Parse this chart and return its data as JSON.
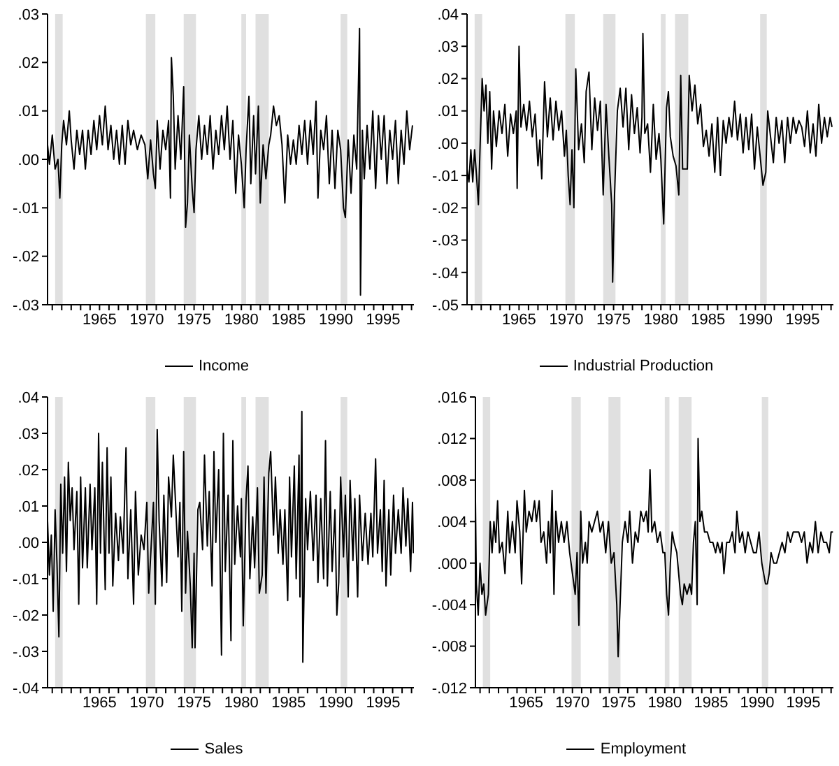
{
  "chart_data": [
    {
      "type": "line",
      "xlim": [
        1959.5,
        1998.25
      ],
      "ylim": [
        -0.03,
        0.03
      ],
      "yticks": [
        {
          "value": -0.03,
          "label": "-.03"
        },
        {
          "value": -0.02,
          "label": "-.02"
        },
        {
          "value": -0.01,
          "label": "-.01"
        },
        {
          "value": 0,
          "label": ".00"
        },
        {
          "value": 0.01,
          "label": ".01"
        },
        {
          "value": 0.02,
          "label": ".02"
        },
        {
          "value": 0.03,
          "label": ".03"
        }
      ],
      "xticks": [
        {
          "value": 1960,
          "label": null
        },
        {
          "value": 1961,
          "label": null
        },
        {
          "value": 1962,
          "label": null
        },
        {
          "value": 1963,
          "label": null
        },
        {
          "value": 1964,
          "label": null
        },
        1965,
        {
          "value": 1966,
          "label": null
        },
        {
          "value": 1967,
          "label": null
        },
        {
          "value": 1968,
          "label": null
        },
        {
          "value": 1969,
          "label": null
        },
        1970,
        {
          "value": 1971,
          "label": null
        },
        {
          "value": 1972,
          "label": null
        },
        {
          "value": 1973,
          "label": null
        },
        {
          "value": 1974,
          "label": null
        },
        1975,
        {
          "value": 1976,
          "label": null
        },
        {
          "value": 1977,
          "label": null
        },
        {
          "value": 1978,
          "label": null
        },
        {
          "value": 1979,
          "label": null
        },
        1980,
        {
          "value": 1981,
          "label": null
        },
        {
          "value": 1982,
          "label": null
        },
        {
          "value": 1983,
          "label": null
        },
        {
          "value": 1984,
          "label": null
        },
        1985,
        {
          "value": 1986,
          "label": null
        },
        {
          "value": 1987,
          "label": null
        },
        {
          "value": 1988,
          "label": null
        },
        {
          "value": 1989,
          "label": null
        },
        1990,
        {
          "value": 1991,
          "label": null
        },
        {
          "value": 1992,
          "label": null
        },
        {
          "value": 1993,
          "label": null
        },
        {
          "value": 1994,
          "label": null
        },
        1995,
        {
          "value": 1996,
          "label": null
        },
        {
          "value": 1997,
          "label": null
        },
        {
          "value": 1998,
          "label": null
        }
      ],
      "bands": [
        {
          "axis": "x",
          "from": 1960.3,
          "to": 1961.1,
          "color": "#e0e0e0"
        },
        {
          "axis": "x",
          "from": 1969.9,
          "to": 1970.9,
          "color": "#e0e0e0"
        },
        {
          "axis": "x",
          "from": 1973.9,
          "to": 1975.2,
          "color": "#e0e0e0"
        },
        {
          "axis": "x",
          "from": 1980,
          "to": 1980.5,
          "color": "#e0e0e0"
        },
        {
          "axis": "x",
          "from": 1981.5,
          "to": 1982.9,
          "color": "#e0e0e0"
        },
        {
          "axis": "x",
          "from": 1990.5,
          "to": 1991.2,
          "color": "#e0e0e0"
        }
      ],
      "legend": "bottom",
      "series": [
        {
          "name": "Income",
          "color": "#000000",
          "x": [
            1959.5,
            1959.7,
            1960.0,
            1960.3,
            1960.6,
            1960.8,
            1961.0,
            1961.2,
            1961.5,
            1961.8,
            1962.0,
            1962.3,
            1962.6,
            1962.9,
            1963.2,
            1963.5,
            1963.8,
            1964.1,
            1964.4,
            1964.7,
            1965.0,
            1965.3,
            1965.6,
            1965.9,
            1966.2,
            1966.5,
            1966.8,
            1967.1,
            1967.4,
            1967.7,
            1968.0,
            1968.3,
            1968.6,
            1969.0,
            1969.4,
            1969.8,
            1970.1,
            1970.4,
            1970.7,
            1970.9,
            1971.1,
            1971.4,
            1971.7,
            1972.0,
            1972.3,
            1972.5,
            1972.6,
            1972.8,
            1973.0,
            1973.3,
            1973.6,
            1973.9,
            1974.1,
            1974.3,
            1974.5,
            1974.8,
            1975.0,
            1975.2,
            1975.5,
            1975.8,
            1976.1,
            1976.4,
            1976.7,
            1977.0,
            1977.3,
            1977.6,
            1977.9,
            1978.2,
            1978.5,
            1978.8,
            1979.1,
            1979.4,
            1979.7,
            1980.0,
            1980.3,
            1980.5,
            1980.8,
            1981.0,
            1981.3,
            1981.5,
            1981.8,
            1982.0,
            1982.3,
            1982.6,
            1982.9,
            1983.1,
            1983.4,
            1983.7,
            1984.0,
            1984.3,
            1984.6,
            1984.9,
            1985.2,
            1985.5,
            1985.8,
            1986.1,
            1986.4,
            1986.7,
            1987.0,
            1987.3,
            1987.6,
            1987.9,
            1988.1,
            1988.4,
            1988.7,
            1989.0,
            1989.3,
            1989.6,
            1989.9,
            1990.2,
            1990.5,
            1990.8,
            1991.0,
            1991.3,
            1991.6,
            1991.9,
            1992.2,
            1992.5,
            1992.6,
            1992.8,
            1993.0,
            1993.3,
            1993.6,
            1993.9,
            1994.2,
            1994.5,
            1994.8,
            1995.1,
            1995.4,
            1995.7,
            1996.0,
            1996.3,
            1996.6,
            1996.9,
            1997.2,
            1997.5,
            1997.8,
            1998.1
          ],
          "values": [
            0.003,
            -0.001,
            0.005,
            -0.002,
            0.0,
            -0.008,
            0.003,
            0.008,
            0.003,
            0.01,
            0.004,
            -0.002,
            0.006,
            0.001,
            0.006,
            -0.002,
            0.006,
            0.001,
            0.008,
            0.002,
            0.009,
            0.003,
            0.011,
            0.002,
            0.007,
            0.0,
            0.006,
            -0.001,
            0.007,
            -0.001,
            0.008,
            0.003,
            0.006,
            0.002,
            0.005,
            0.003,
            -0.004,
            0.004,
            -0.003,
            -0.006,
            0.008,
            -0.002,
            0.006,
            0.002,
            0.008,
            -0.008,
            0.021,
            0.013,
            -0.002,
            0.009,
            0.0,
            0.015,
            -0.014,
            -0.009,
            0.005,
            -0.006,
            -0.011,
            0.002,
            0.009,
            0.0,
            0.007,
            0.001,
            0.009,
            -0.002,
            0.006,
            0.001,
            0.009,
            0.002,
            0.011,
            0.0,
            0.008,
            -0.007,
            0.005,
            -0.001,
            -0.01,
            0.002,
            0.013,
            -0.005,
            0.009,
            -0.003,
            0.011,
            -0.009,
            0.003,
            -0.004,
            0.003,
            0.005,
            0.011,
            0.007,
            0.009,
            0.003,
            -0.009,
            0.005,
            -0.001,
            0.004,
            -0.001,
            0.007,
            0.001,
            0.008,
            -0.001,
            0.008,
            0.001,
            0.012,
            -0.008,
            0.006,
            0.002,
            0.009,
            -0.005,
            0.006,
            -0.006,
            0.006,
            0.002,
            -0.01,
            -0.012,
            0.004,
            -0.007,
            0.005,
            -0.002,
            0.027,
            -0.028,
            0.006,
            -0.004,
            0.007,
            -0.002,
            0.01,
            -0.006,
            0.009,
            0.0,
            0.009,
            -0.005,
            0.006,
            0.0,
            0.008,
            -0.005,
            0.006,
            -0.001,
            0.01,
            0.002,
            0.007
          ]
        }
      ]
    },
    {
      "type": "line",
      "xlim": [
        1959.5,
        1998.25
      ],
      "ylim": [
        -0.05,
        0.04
      ],
      "yticks": [
        {
          "value": -0.05,
          "label": "-.05"
        },
        {
          "value": -0.04,
          "label": "-.04"
        },
        {
          "value": -0.03,
          "label": "-.03"
        },
        {
          "value": -0.02,
          "label": "-.02"
        },
        {
          "value": -0.01,
          "label": "-.01"
        },
        {
          "value": 0,
          "label": ".00"
        },
        {
          "value": 0.01,
          "label": ".01"
        },
        {
          "value": 0.02,
          "label": ".02"
        },
        {
          "value": 0.03,
          "label": ".03"
        },
        {
          "value": 0.04,
          "label": ".04"
        }
      ],
      "xticks": [
        {
          "value": 1960,
          "label": null
        },
        {
          "value": 1961,
          "label": null
        },
        {
          "value": 1962,
          "label": null
        },
        {
          "value": 1963,
          "label": null
        },
        {
          "value": 1964,
          "label": null
        },
        1965,
        {
          "value": 1966,
          "label": null
        },
        {
          "value": 1967,
          "label": null
        },
        {
          "value": 1968,
          "label": null
        },
        {
          "value": 1969,
          "label": null
        },
        1970,
        {
          "value": 1971,
          "label": null
        },
        {
          "value": 1972,
          "label": null
        },
        {
          "value": 1973,
          "label": null
        },
        {
          "value": 1974,
          "label": null
        },
        1975,
        {
          "value": 1976,
          "label": null
        },
        {
          "value": 1977,
          "label": null
        },
        {
          "value": 1978,
          "label": null
        },
        {
          "value": 1979,
          "label": null
        },
        1980,
        {
          "value": 1981,
          "label": null
        },
        {
          "value": 1982,
          "label": null
        },
        {
          "value": 1983,
          "label": null
        },
        {
          "value": 1984,
          "label": null
        },
        1985,
        {
          "value": 1986,
          "label": null
        },
        {
          "value": 1987,
          "label": null
        },
        {
          "value": 1988,
          "label": null
        },
        {
          "value": 1989,
          "label": null
        },
        1990,
        {
          "value": 1991,
          "label": null
        },
        {
          "value": 1992,
          "label": null
        },
        {
          "value": 1993,
          "label": null
        },
        {
          "value": 1994,
          "label": null
        },
        1995,
        {
          "value": 1996,
          "label": null
        },
        {
          "value": 1997,
          "label": null
        },
        {
          "value": 1998,
          "label": null
        }
      ],
      "bands": [
        {
          "axis": "x",
          "from": 1960.3,
          "to": 1961.1,
          "color": "#e0e0e0"
        },
        {
          "axis": "x",
          "from": 1969.9,
          "to": 1970.9,
          "color": "#e0e0e0"
        },
        {
          "axis": "x",
          "from": 1973.9,
          "to": 1975.2,
          "color": "#e0e0e0"
        },
        {
          "axis": "x",
          "from": 1980,
          "to": 1980.5,
          "color": "#e0e0e0"
        },
        {
          "axis": "x",
          "from": 1981.5,
          "to": 1982.9,
          "color": "#e0e0e0"
        },
        {
          "axis": "x",
          "from": 1990.5,
          "to": 1991.2,
          "color": "#e0e0e0"
        }
      ],
      "legend": "bottom",
      "series": [
        {
          "name": "Industrial Production",
          "color": "#000000",
          "x": [
            1959.5,
            1959.7,
            1959.9,
            1960.1,
            1960.3,
            1960.5,
            1960.7,
            1960.9,
            1961.1,
            1961.3,
            1961.5,
            1961.7,
            1961.9,
            1962.1,
            1962.3,
            1962.6,
            1962.9,
            1963.2,
            1963.5,
            1963.8,
            1964.1,
            1964.4,
            1964.7,
            1964.8,
            1965.0,
            1965.2,
            1965.5,
            1965.8,
            1966.1,
            1966.4,
            1966.7,
            1967.0,
            1967.2,
            1967.4,
            1967.7,
            1968.0,
            1968.3,
            1968.6,
            1968.9,
            1969.2,
            1969.5,
            1969.8,
            1970.0,
            1970.2,
            1970.4,
            1970.6,
            1970.8,
            1971.0,
            1971.3,
            1971.6,
            1971.9,
            1972.1,
            1972.4,
            1972.7,
            1973.0,
            1973.3,
            1973.6,
            1973.9,
            1974.2,
            1974.5,
            1974.8,
            1974.9,
            1975.1,
            1975.4,
            1975.7,
            1976.0,
            1976.3,
            1976.6,
            1976.9,
            1977.2,
            1977.5,
            1977.8,
            1978.0,
            1978.1,
            1978.3,
            1978.6,
            1978.9,
            1979.2,
            1979.5,
            1979.8,
            1980.0,
            1980.3,
            1980.6,
            1980.8,
            1981.0,
            1981.3,
            1981.6,
            1981.9,
            1982.1,
            1982.3,
            1982.6,
            1982.8,
            1983.0,
            1983.3,
            1983.6,
            1983.9,
            1984.2,
            1984.5,
            1984.8,
            1985.1,
            1985.4,
            1985.7,
            1986.0,
            1986.3,
            1986.6,
            1986.9,
            1987.2,
            1987.5,
            1987.8,
            1988.1,
            1988.4,
            1988.7,
            1989.0,
            1989.3,
            1989.6,
            1989.9,
            1990.2,
            1990.5,
            1990.8,
            1991.1,
            1991.3,
            1991.6,
            1991.9,
            1992.2,
            1992.5,
            1992.8,
            1993.1,
            1993.4,
            1993.7,
            1994.0,
            1994.3,
            1994.6,
            1994.9,
            1995.2,
            1995.5,
            1995.8,
            1996.1,
            1996.4,
            1996.7,
            1997.0,
            1997.3,
            1997.6,
            1997.9,
            1998.1
          ],
          "values": [
            -0.008,
            -0.012,
            -0.002,
            -0.012,
            -0.002,
            -0.01,
            -0.019,
            0.001,
            0.02,
            0.01,
            0.018,
            0.0,
            0.016,
            -0.008,
            0.01,
            -0.001,
            0.01,
            0.003,
            0.012,
            -0.004,
            0.009,
            0.003,
            0.01,
            -0.014,
            0.03,
            0.005,
            0.012,
            0.004,
            0.013,
            0.002,
            0.009,
            -0.007,
            0.001,
            -0.011,
            0.019,
            0.002,
            0.014,
            0.001,
            0.013,
            0.004,
            0.01,
            -0.004,
            0.004,
            -0.01,
            -0.019,
            -0.002,
            -0.02,
            0.023,
            -0.002,
            0.006,
            -0.006,
            0.016,
            0.022,
            -0.002,
            0.014,
            0.004,
            0.013,
            -0.016,
            0.012,
            -0.004,
            -0.019,
            -0.043,
            -0.016,
            0.01,
            0.017,
            0.005,
            0.017,
            -0.002,
            0.015,
            0.003,
            0.011,
            -0.003,
            0.008,
            0.034,
            0.003,
            0.006,
            -0.009,
            0.012,
            -0.005,
            0.003,
            -0.005,
            -0.025,
            0.011,
            0.016,
            0.002,
            -0.004,
            -0.007,
            -0.016,
            0.021,
            -0.008,
            -0.008,
            -0.008,
            0.021,
            0.01,
            0.018,
            0.006,
            0.012,
            -0.001,
            0.004,
            -0.004,
            0.006,
            -0.009,
            0.008,
            -0.01,
            0.007,
            0.0,
            0.008,
            0.002,
            0.013,
            0.001,
            0.009,
            -0.003,
            0.008,
            -0.002,
            0.009,
            -0.008,
            0.005,
            -0.004,
            -0.013,
            -0.009,
            0.01,
            0.002,
            -0.006,
            0.008,
            0.0,
            0.007,
            -0.006,
            0.008,
            0.0,
            0.008,
            0.003,
            0.007,
            0.005,
            -0.001,
            0.01,
            -0.003,
            0.006,
            -0.004,
            0.012,
            0.0,
            0.008,
            0.002,
            0.008,
            0.005
          ]
        }
      ]
    },
    {
      "type": "line",
      "xlim": [
        1959.5,
        1998.25
      ],
      "ylim": [
        -0.04,
        0.04
      ],
      "yticks": [
        {
          "value": -0.04,
          "label": "-.04"
        },
        {
          "value": -0.03,
          "label": "-.03"
        },
        {
          "value": -0.02,
          "label": "-.02"
        },
        {
          "value": -0.01,
          "label": "-.01"
        },
        {
          "value": 0,
          "label": ".00"
        },
        {
          "value": 0.01,
          "label": ".01"
        },
        {
          "value": 0.02,
          "label": ".02"
        },
        {
          "value": 0.03,
          "label": ".03"
        },
        {
          "value": 0.04,
          "label": ".04"
        }
      ],
      "xticks": [
        {
          "value": 1960,
          "label": null
        },
        {
          "value": 1961,
          "label": null
        },
        {
          "value": 1962,
          "label": null
        },
        {
          "value": 1963,
          "label": null
        },
        {
          "value": 1964,
          "label": null
        },
        1965,
        {
          "value": 1966,
          "label": null
        },
        {
          "value": 1967,
          "label": null
        },
        {
          "value": 1968,
          "label": null
        },
        {
          "value": 1969,
          "label": null
        },
        1970,
        {
          "value": 1971,
          "label": null
        },
        {
          "value": 1972,
          "label": null
        },
        {
          "value": 1973,
          "label": null
        },
        {
          "value": 1974,
          "label": null
        },
        1975,
        {
          "value": 1976,
          "label": null
        },
        {
          "value": 1977,
          "label": null
        },
        {
          "value": 1978,
          "label": null
        },
        {
          "value": 1979,
          "label": null
        },
        1980,
        {
          "value": 1981,
          "label": null
        },
        {
          "value": 1982,
          "label": null
        },
        {
          "value": 1983,
          "label": null
        },
        {
          "value": 1984,
          "label": null
        },
        1985,
        {
          "value": 1986,
          "label": null
        },
        {
          "value": 1987,
          "label": null
        },
        {
          "value": 1988,
          "label": null
        },
        {
          "value": 1989,
          "label": null
        },
        1990,
        {
          "value": 1991,
          "label": null
        },
        {
          "value": 1992,
          "label": null
        },
        {
          "value": 1993,
          "label": null
        },
        {
          "value": 1994,
          "label": null
        },
        1995,
        {
          "value": 1996,
          "label": null
        },
        {
          "value": 1997,
          "label": null
        },
        {
          "value": 1998,
          "label": null
        }
      ],
      "bands": [
        {
          "axis": "x",
          "from": 1960.3,
          "to": 1961.1,
          "color": "#e0e0e0"
        },
        {
          "axis": "x",
          "from": 1969.9,
          "to": 1970.9,
          "color": "#e0e0e0"
        },
        {
          "axis": "x",
          "from": 1973.9,
          "to": 1975.2,
          "color": "#e0e0e0"
        },
        {
          "axis": "x",
          "from": 1980,
          "to": 1980.5,
          "color": "#e0e0e0"
        },
        {
          "axis": "x",
          "from": 1981.5,
          "to": 1982.9,
          "color": "#e0e0e0"
        },
        {
          "axis": "x",
          "from": 1990.5,
          "to": 1991.2,
          "color": "#e0e0e0"
        }
      ],
      "legend": "bottom",
      "series": [
        {
          "name": "Sales",
          "color": "#000000",
          "x": [
            1959.5,
            1959.7,
            1959.9,
            1960.1,
            1960.3,
            1960.5,
            1960.7,
            1960.9,
            1961.1,
            1961.3,
            1961.5,
            1961.7,
            1961.9,
            1962.1,
            1962.3,
            1962.6,
            1962.8,
            1963.0,
            1963.2,
            1963.5,
            1963.7,
            1964.0,
            1964.2,
            1964.5,
            1964.7,
            1964.9,
            1965.1,
            1965.3,
            1965.6,
            1965.8,
            1966.0,
            1966.2,
            1966.4,
            1966.7,
            1967.0,
            1967.2,
            1967.5,
            1967.8,
            1968.0,
            1968.3,
            1968.6,
            1968.8,
            1969.1,
            1969.4,
            1969.7,
            1970.0,
            1970.2,
            1970.5,
            1970.7,
            1970.9,
            1971.1,
            1971.3,
            1971.6,
            1971.8,
            1972.1,
            1972.3,
            1972.6,
            1972.8,
            1973.0,
            1973.3,
            1973.5,
            1973.7,
            1973.9,
            1974.1,
            1974.3,
            1974.6,
            1974.8,
            1975.0,
            1975.1,
            1975.4,
            1975.6,
            1975.9,
            1976.1,
            1976.4,
            1976.6,
            1976.9,
            1977.1,
            1977.3,
            1977.6,
            1977.9,
            1978.1,
            1978.3,
            1978.6,
            1978.9,
            1979.1,
            1979.3,
            1979.6,
            1979.9,
            1980.0,
            1980.2,
            1980.5,
            1980.7,
            1980.9,
            1981.2,
            1981.4,
            1981.7,
            1981.9,
            1982.2,
            1982.4,
            1982.6,
            1982.9,
            1983.1,
            1983.4,
            1983.6,
            1983.9,
            1984.1,
            1984.4,
            1984.6,
            1984.9,
            1985.1,
            1985.3,
            1985.6,
            1985.8,
            1986.1,
            1986.2,
            1986.4,
            1986.5,
            1986.8,
            1987.0,
            1987.3,
            1987.6,
            1987.9,
            1988.1,
            1988.4,
            1988.7,
            1988.9,
            1989.1,
            1989.4,
            1989.6,
            1989.9,
            1990.1,
            1990.3,
            1990.5,
            1990.8,
            1991.0,
            1991.3,
            1991.5,
            1991.8,
            1992.0,
            1992.3,
            1992.5,
            1992.8,
            1993.1,
            1993.4,
            1993.7,
            1993.9,
            1994.2,
            1994.4,
            1994.7,
            1994.9,
            1995.1,
            1995.3,
            1995.6,
            1995.8,
            1996.1,
            1996.3,
            1996.6,
            1996.9,
            1997.1,
            1997.4,
            1997.6,
            1997.9,
            1998.1,
            1998.2
          ],
          "values": [
            0.006,
            -0.009,
            0.002,
            -0.019,
            0.009,
            -0.006,
            -0.026,
            0.016,
            -0.003,
            0.018,
            -0.008,
            0.022,
            0.006,
            0.015,
            -0.002,
            0.014,
            -0.017,
            0.018,
            -0.007,
            0.015,
            -0.007,
            0.016,
            -0.002,
            0.015,
            -0.017,
            0.03,
            -0.003,
            0.022,
            -0.013,
            0.026,
            -0.003,
            0.018,
            -0.012,
            0.008,
            -0.005,
            0.007,
            -0.003,
            0.026,
            -0.01,
            0.009,
            -0.017,
            0.014,
            -0.009,
            0.002,
            -0.002,
            0.011,
            -0.014,
            0.001,
            0.011,
            -0.017,
            0.031,
            0.006,
            -0.012,
            0.013,
            -0.011,
            0.018,
            0.007,
            0.024,
            0.013,
            -0.004,
            0.011,
            -0.019,
            0.025,
            -0.014,
            0.003,
            -0.012,
            -0.029,
            -0.003,
            -0.029,
            0.009,
            0.011,
            -0.002,
            0.024,
            -0.001,
            0.014,
            -0.012,
            0.025,
            0.0,
            0.02,
            -0.031,
            0.03,
            -0.008,
            0.013,
            -0.027,
            0.028,
            -0.006,
            0.01,
            -0.004,
            0.012,
            -0.023,
            0.012,
            0.021,
            -0.01,
            0.007,
            -0.007,
            0.015,
            -0.014,
            -0.009,
            0.018,
            -0.014,
            0.019,
            0.025,
            0.002,
            0.018,
            -0.003,
            0.009,
            -0.006,
            0.009,
            -0.016,
            0.018,
            -0.004,
            0.021,
            -0.01,
            0.024,
            -0.015,
            0.036,
            -0.033,
            0.012,
            -0.002,
            0.014,
            -0.005,
            0.013,
            -0.011,
            0.012,
            -0.01,
            0.028,
            -0.012,
            0.014,
            -0.008,
            0.009,
            -0.02,
            -0.011,
            0.018,
            -0.004,
            0.013,
            -0.015,
            0.017,
            -0.005,
            0.012,
            -0.015,
            0.013,
            -0.005,
            0.008,
            -0.006,
            0.008,
            -0.004,
            0.023,
            -0.003,
            0.009,
            -0.008,
            0.017,
            -0.012,
            0.009,
            -0.009,
            0.013,
            -0.003,
            0.009,
            -0.003,
            0.015,
            -0.001,
            0.012,
            -0.008,
            0.011,
            -0.003
          ]
        }
      ]
    },
    {
      "type": "line",
      "xlim": [
        1959.5,
        1998.25
      ],
      "ylim": [
        -0.012,
        0.016
      ],
      "yticks": [
        {
          "value": -0.012,
          "label": "-.012"
        },
        {
          "value": -0.008,
          "label": "-.008"
        },
        {
          "value": -0.004,
          "label": "-.004"
        },
        {
          "value": 0,
          "label": ".000"
        },
        {
          "value": 0.004,
          "label": ".004"
        },
        {
          "value": 0.008,
          "label": ".008"
        },
        {
          "value": 0.012,
          "label": ".012"
        },
        {
          "value": 0.016,
          "label": ".016"
        }
      ],
      "xticks": [
        {
          "value": 1960,
          "label": null
        },
        {
          "value": 1961,
          "label": null
        },
        {
          "value": 1962,
          "label": null
        },
        {
          "value": 1963,
          "label": null
        },
        {
          "value": 1964,
          "label": null
        },
        1965,
        {
          "value": 1966,
          "label": null
        },
        {
          "value": 1967,
          "label": null
        },
        {
          "value": 1968,
          "label": null
        },
        {
          "value": 1969,
          "label": null
        },
        1970,
        {
          "value": 1971,
          "label": null
        },
        {
          "value": 1972,
          "label": null
        },
        {
          "value": 1973,
          "label": null
        },
        {
          "value": 1974,
          "label": null
        },
        1975,
        {
          "value": 1976,
          "label": null
        },
        {
          "value": 1977,
          "label": null
        },
        {
          "value": 1978,
          "label": null
        },
        {
          "value": 1979,
          "label": null
        },
        1980,
        {
          "value": 1981,
          "label": null
        },
        {
          "value": 1982,
          "label": null
        },
        {
          "value": 1983,
          "label": null
        },
        {
          "value": 1984,
          "label": null
        },
        1985,
        {
          "value": 1986,
          "label": null
        },
        {
          "value": 1987,
          "label": null
        },
        {
          "value": 1988,
          "label": null
        },
        {
          "value": 1989,
          "label": null
        },
        1990,
        {
          "value": 1991,
          "label": null
        },
        {
          "value": 1992,
          "label": null
        },
        {
          "value": 1993,
          "label": null
        },
        {
          "value": 1994,
          "label": null
        },
        1995,
        {
          "value": 1996,
          "label": null
        },
        {
          "value": 1997,
          "label": null
        },
        {
          "value": 1998,
          "label": null
        }
      ],
      "bands": [
        {
          "axis": "x",
          "from": 1960.3,
          "to": 1961.1,
          "color": "#e0e0e0"
        },
        {
          "axis": "x",
          "from": 1969.9,
          "to": 1970.9,
          "color": "#e0e0e0"
        },
        {
          "axis": "x",
          "from": 1973.9,
          "to": 1975.2,
          "color": "#e0e0e0"
        },
        {
          "axis": "x",
          "from": 1980,
          "to": 1980.5,
          "color": "#e0e0e0"
        },
        {
          "axis": "x",
          "from": 1981.5,
          "to": 1982.9,
          "color": "#e0e0e0"
        },
        {
          "axis": "x",
          "from": 1990.5,
          "to": 1991.2,
          "color": "#e0e0e0"
        }
      ],
      "legend": "bottom",
      "series": [
        {
          "name": "Employment",
          "color": "#000000",
          "x": [
            1959.5,
            1959.6,
            1959.8,
            1960.0,
            1960.2,
            1960.4,
            1960.6,
            1960.9,
            1961.1,
            1961.3,
            1961.5,
            1961.7,
            1961.9,
            1962.1,
            1962.4,
            1962.7,
            1963.0,
            1963.2,
            1963.5,
            1963.8,
            1964.0,
            1964.3,
            1964.5,
            1964.8,
            1965.0,
            1965.3,
            1965.6,
            1965.9,
            1966.1,
            1966.4,
            1966.6,
            1966.9,
            1967.2,
            1967.4,
            1967.6,
            1967.8,
            1968.0,
            1968.2,
            1968.5,
            1968.8,
            1969.1,
            1969.4,
            1969.7,
            1970.0,
            1970.3,
            1970.5,
            1970.7,
            1970.9,
            1971.1,
            1971.4,
            1971.6,
            1971.8,
            1972.1,
            1972.4,
            1972.7,
            1973.0,
            1973.3,
            1973.6,
            1973.9,
            1974.2,
            1974.5,
            1974.8,
            1974.95,
            1975.2,
            1975.4,
            1975.7,
            1976.0,
            1976.2,
            1976.5,
            1976.8,
            1977.1,
            1977.4,
            1977.7,
            1978.0,
            1978.2,
            1978.4,
            1978.6,
            1978.9,
            1979.2,
            1979.5,
            1979.8,
            1980.0,
            1980.2,
            1980.4,
            1980.6,
            1980.8,
            1981.0,
            1981.3,
            1981.5,
            1981.7,
            1981.9,
            1982.1,
            1982.4,
            1982.7,
            1982.9,
            1983.1,
            1983.3,
            1983.5,
            1983.6,
            1983.8,
            1984.0,
            1984.3,
            1984.6,
            1984.9,
            1985.2,
            1985.5,
            1985.7,
            1986.0,
            1986.2,
            1986.4,
            1986.7,
            1987.0,
            1987.3,
            1987.6,
            1987.8,
            1988.1,
            1988.4,
            1988.7,
            1989.0,
            1989.3,
            1989.6,
            1989.9,
            1990.2,
            1990.5,
            1990.7,
            1990.9,
            1991.1,
            1991.3,
            1991.5,
            1991.8,
            1992.1,
            1992.4,
            1992.7,
            1993.0,
            1993.3,
            1993.6,
            1993.9,
            1994.2,
            1994.5,
            1994.8,
            1995.1,
            1995.4,
            1995.7,
            1996.0,
            1996.3,
            1996.6,
            1996.9,
            1997.2,
            1997.5,
            1997.8,
            1998.0,
            1998.2
          ],
          "values": [
            0.006,
            -0.002,
            -0.005,
            0.0,
            -0.003,
            -0.002,
            -0.005,
            -0.003,
            0.004,
            0.001,
            0.004,
            0.002,
            0.006,
            0.001,
            0.002,
            -0.001,
            0.005,
            0.001,
            0.004,
            0.001,
            0.006,
            0.003,
            -0.002,
            0.007,
            0.003,
            0.005,
            0.004,
            0.006,
            0.004,
            0.006,
            0.002,
            0.003,
            0.0,
            0.004,
            0.001,
            0.007,
            -0.003,
            0.005,
            0.002,
            0.004,
            0.002,
            0.004,
            0.001,
            -0.001,
            -0.003,
            0.001,
            -0.006,
            0.005,
            0.0,
            0.002,
            0.0,
            0.004,
            0.003,
            0.004,
            0.005,
            0.003,
            0.004,
            0.001,
            0.004,
            0.0,
            0.001,
            -0.004,
            -0.009,
            -0.003,
            0.002,
            0.004,
            0.002,
            0.005,
            0.0,
            0.003,
            0.002,
            0.005,
            0.004,
            0.005,
            0.003,
            0.009,
            0.003,
            0.004,
            0.002,
            0.003,
            0.001,
            0.001,
            -0.003,
            -0.005,
            0.0,
            0.003,
            0.002,
            0.001,
            -0.001,
            -0.003,
            -0.004,
            -0.002,
            -0.003,
            -0.002,
            -0.003,
            0.002,
            0.004,
            -0.004,
            0.012,
            0.004,
            0.005,
            0.003,
            0.003,
            0.002,
            0.002,
            0.001,
            0.002,
            0.001,
            0.002,
            -0.001,
            0.002,
            0.002,
            0.003,
            0.001,
            0.005,
            0.002,
            0.003,
            0.001,
            0.003,
            0.002,
            0.001,
            0.001,
            0.003,
            0.0,
            -0.001,
            -0.002,
            -0.002,
            -0.001,
            0.001,
            0.0,
            0.0,
            0.001,
            0.002,
            0.001,
            0.003,
            0.002,
            0.003,
            0.003,
            0.003,
            0.002,
            0.003,
            0.0,
            0.002,
            0.001,
            0.004,
            0.001,
            0.003,
            0.002,
            0.002,
            0.001,
            0.003,
            0.003
          ]
        }
      ]
    }
  ]
}
